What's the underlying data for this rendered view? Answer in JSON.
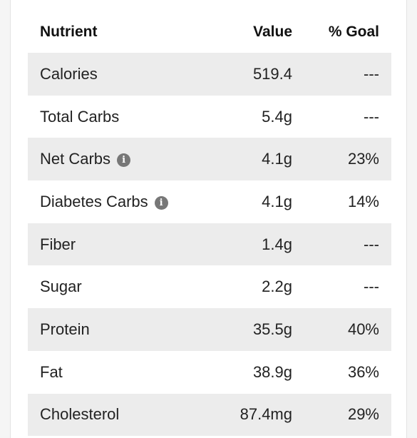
{
  "table": {
    "headers": {
      "nutrient": "Nutrient",
      "value": "Value",
      "goal": "% Goal"
    },
    "rows": [
      {
        "nutrient": "Calories",
        "value": "519.4",
        "goal": "---",
        "info": false
      },
      {
        "nutrient": "Total Carbs",
        "value": "5.4g",
        "goal": "---",
        "info": false
      },
      {
        "nutrient": "Net Carbs",
        "value": "4.1g",
        "goal": "23%",
        "info": true
      },
      {
        "nutrient": "Diabetes Carbs",
        "value": "4.1g",
        "goal": "14%",
        "info": true
      },
      {
        "nutrient": "Fiber",
        "value": "1.4g",
        "goal": "---",
        "info": false
      },
      {
        "nutrient": "Sugar",
        "value": "2.2g",
        "goal": "---",
        "info": false
      },
      {
        "nutrient": "Protein",
        "value": "35.5g",
        "goal": "40%",
        "info": false
      },
      {
        "nutrient": "Fat",
        "value": "38.9g",
        "goal": "36%",
        "info": false
      },
      {
        "nutrient": "Cholesterol",
        "value": "87.4mg",
        "goal": "29%",
        "info": false
      }
    ]
  },
  "icons": {
    "info": "info-icon",
    "info_glyph": "i"
  },
  "colors": {
    "row_shade": "#ececec",
    "info_icon": "#777777"
  }
}
